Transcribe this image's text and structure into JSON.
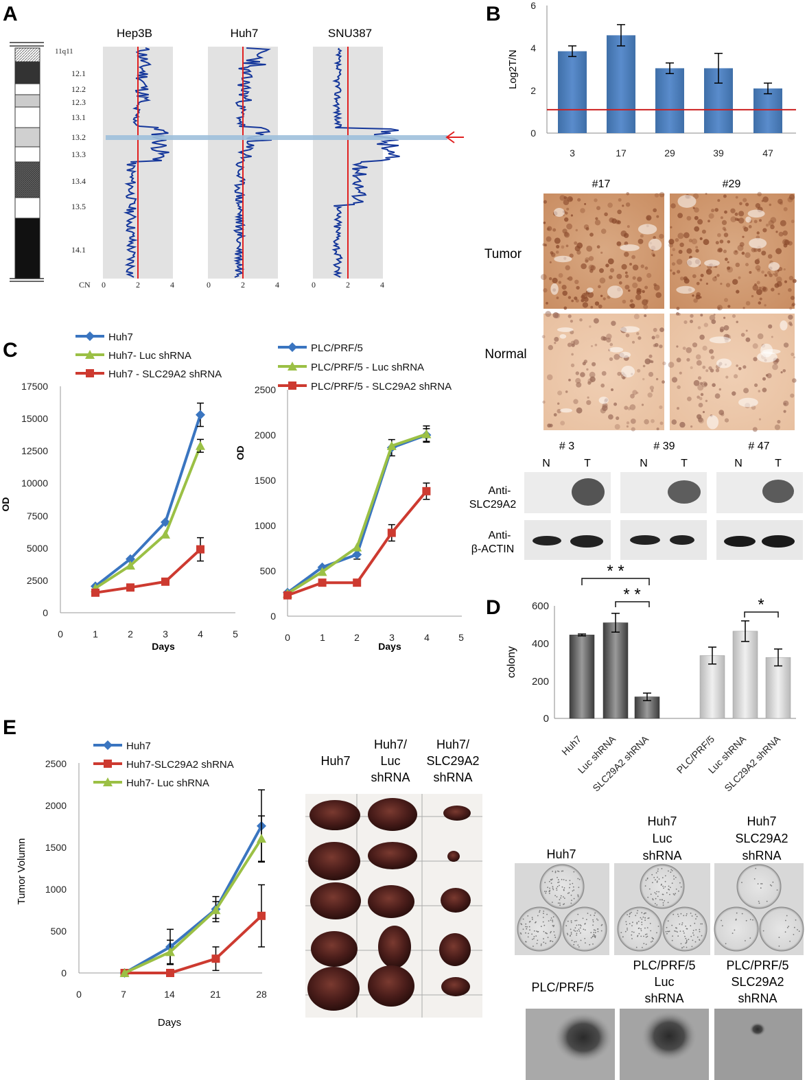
{
  "panel_labels": {
    "a": "A",
    "b": "B",
    "c": "C",
    "d": "D",
    "e": "E"
  },
  "colors": {
    "cn_trace": "#14369a",
    "ref_line": "#e02020",
    "highlight": "#9ec0dc",
    "bar_blue": "#4e81bd",
    "line_blue": "#3a75c0",
    "line_red": "#cd3a30",
    "line_green": "#9bc045",
    "gray_panel": "#e2e2e2"
  },
  "panel_a": {
    "cell_lines": [
      "Hep3B",
      "Huh7",
      "SNU387"
    ],
    "cytobands": [
      "11q11",
      "12.1",
      "12.2",
      "12.3",
      "13.1",
      "13.2",
      "13.3",
      "13.4",
      "13.5",
      "14.1"
    ],
    "cn_axis_title": "CN",
    "cn_ticks": [
      "0",
      "2",
      "4"
    ],
    "arrow_glyph": "arrow-left"
  },
  "panel_b": {
    "ihc_samples": [
      "#17",
      "#29"
    ],
    "ihc_rows": [
      "Tumor",
      "Normal"
    ],
    "blot_samples": [
      "# 3",
      "# 39",
      "# 47"
    ],
    "blot_lane_labels": [
      "N",
      "T"
    ],
    "blot_row1": [
      "Anti-",
      "SLC29A2"
    ],
    "blot_row2": [
      "Anti-",
      "β-ACTIN"
    ]
  },
  "chart_data": [
    {
      "id": "b-bar",
      "type": "bar",
      "categories": [
        "3",
        "17",
        "29",
        "39",
        "47"
      ],
      "values": [
        3.85,
        4.6,
        3.05,
        3.05,
        2.1
      ],
      "errors": [
        0.25,
        0.5,
        0.25,
        0.7,
        0.25
      ],
      "ylabel": "Log2T/N",
      "ylim": [
        0,
        6
      ],
      "yticks": [
        "0",
        "2",
        "4",
        "6"
      ],
      "reference_line": 1.1
    },
    {
      "id": "c-left",
      "type": "line",
      "x": [
        1,
        2,
        3,
        4
      ],
      "series": [
        {
          "name": "Huh7",
          "values": [
            2050,
            4150,
            7000,
            15300
          ],
          "errors": [
            0,
            0,
            0,
            900
          ]
        },
        {
          "name": "Huh7- Luc shRNA",
          "values": [
            1900,
            3650,
            6050,
            12900
          ],
          "errors": [
            0,
            0,
            0,
            500
          ]
        },
        {
          "name": "Huh7 - SLC29A2 shRNA",
          "values": [
            1550,
            1950,
            2400,
            4900
          ],
          "errors": [
            0,
            0,
            0,
            900
          ]
        }
      ],
      "xlabel": "Days",
      "ylabel": "OD",
      "xlim": [
        0,
        5
      ],
      "ylim": [
        0,
        17500
      ],
      "xticks": [
        "0",
        "1",
        "2",
        "3",
        "4",
        "5"
      ],
      "yticks": [
        "0",
        "2500",
        "5000",
        "7500",
        "10000",
        "12500",
        "15000",
        "17500"
      ]
    },
    {
      "id": "c-right",
      "type": "line",
      "x": [
        0,
        1,
        2,
        3,
        4
      ],
      "series": [
        {
          "name": "PLC/PRF/5",
          "values": [
            260,
            540,
            680,
            1860,
            2000
          ],
          "errors": [
            0,
            0,
            50,
            90,
            70
          ]
        },
        {
          "name": "PLC/PRF/5 - Luc shRNA",
          "values": [
            250,
            490,
            760,
            1880,
            2010
          ],
          "errors": [
            0,
            0,
            0,
            0,
            90
          ]
        },
        {
          "name": "PLC/PRF/5 - SLC29A2 shRNA",
          "values": [
            230,
            370,
            370,
            920,
            1380
          ],
          "errors": [
            0,
            0,
            0,
            90,
            90
          ]
        }
      ],
      "xlabel": "Days",
      "ylabel": "OD",
      "xlim": [
        0,
        5
      ],
      "ylim": [
        0,
        2500
      ],
      "xticks": [
        "0",
        "1",
        "2",
        "3",
        "4",
        "5"
      ],
      "yticks": [
        "0",
        "500",
        "1000",
        "1500",
        "2000",
        "2500"
      ]
    },
    {
      "id": "d-bar",
      "type": "bar",
      "categories": [
        "Huh7",
        "Luc shRNA",
        "SLC29A2 shRNA",
        "PLC/PRF/5",
        "Luc shRNA",
        "SLC29A2 shRNA"
      ],
      "values": [
        445,
        510,
        115,
        335,
        465,
        325
      ],
      "errors": [
        5,
        50,
        20,
        45,
        55,
        45
      ],
      "ylabel": "colony",
      "ylim": [
        0,
        600
      ],
      "yticks": [
        "0",
        "200",
        "400",
        "600"
      ],
      "significance": [
        "* *",
        "* *",
        "*"
      ]
    },
    {
      "id": "e-line",
      "type": "line",
      "x": [
        7,
        14,
        21,
        28
      ],
      "series": [
        {
          "name": "Huh7",
          "values": [
            0,
            310,
            760,
            1750
          ],
          "errors": [
            0,
            210,
            150,
            430
          ]
        },
        {
          "name": "Huh7-SLC29A2 shRNA",
          "values": [
            0,
            0,
            170,
            680
          ],
          "errors": [
            0,
            0,
            140,
            370
          ]
        },
        {
          "name": "Huh7- Luc shRNA",
          "values": [
            0,
            250,
            750,
            1600
          ],
          "errors": [
            0,
            140,
            100,
            270
          ]
        }
      ],
      "xlabel": "Days",
      "ylabel": "Tumor Volumn",
      "xlim": [
        0,
        28
      ],
      "ylim": [
        0,
        2500
      ],
      "xticks": [
        "0",
        "7",
        "14",
        "21",
        "28"
      ],
      "yticks": [
        "0",
        "500",
        "1000",
        "1500",
        "2000",
        "2500"
      ]
    }
  ],
  "panel_e": {
    "photo_cols": [
      [
        "Huh7"
      ],
      [
        "Huh7/",
        "Luc",
        "shRNA"
      ],
      [
        "Huh7/",
        "SLC29A2",
        "shRNA"
      ]
    ]
  },
  "colony_images": {
    "row1": [
      [
        "Huh7"
      ],
      [
        "Huh7",
        "Luc",
        "shRNA"
      ],
      [
        "Huh7",
        "SLC29A2",
        "shRNA"
      ]
    ],
    "row2": [
      [
        "PLC/PRF/5"
      ],
      [
        "PLC/PRF/5",
        "Luc",
        "shRNA"
      ],
      [
        "PLC/PRF/5",
        "SLC29A2",
        "shRNA"
      ]
    ]
  }
}
